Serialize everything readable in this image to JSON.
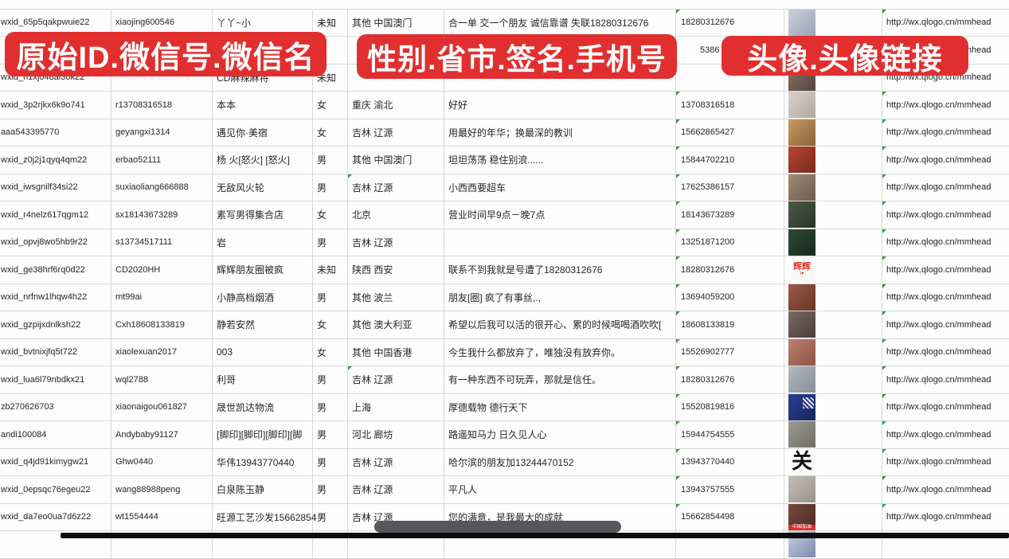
{
  "overlay_banners": [
    {
      "label": "原始ID.微信号.微信名"
    },
    {
      "label": "性别.省市.签名.手机号"
    },
    {
      "label": "头像.头像链接"
    }
  ],
  "colors": {
    "banner_red": "#e12f2f",
    "grid_line": "#d8d8d8",
    "text": "#262626",
    "error_flag_green": "#3f9a3f",
    "scrollbar_thumb": "#54585c",
    "bottom_bar": "#0d0d0d"
  },
  "rows": [
    {
      "original_id": "wxid_65p5qakpwuie22",
      "wechat_id": "xiaojing600546",
      "wechat_name": "丫丫~小",
      "gender": "未知",
      "province": "其他 中国澳门",
      "signature": "合一单 交一个朋友 诚信靠谱 失联18280312676",
      "phone": "18280312676",
      "avatar_url": "http://wx.qlogo.cn/mmhead",
      "avatar": {
        "name": "avatar-girl-photo",
        "colors": [
          "#c7d0dc",
          "#9aa5b5"
        ]
      },
      "marks": {
        "phone": true,
        "url": true
      }
    },
    {
      "original_id": "",
      "wechat_id": "",
      "wechat_name": "",
      "gender": "",
      "province": "",
      "signature": "",
      "phone": "5386",
      "avatar_url": "http://wx.qlogo.cn/mmhead",
      "avatar": {
        "name": "avatar-girl-photo",
        "colors": [
          "#c9c2bb",
          "#9b9490"
        ]
      },
      "marks": {
        "url": true
      }
    },
    {
      "original_id": "wxid_h1xj048al3ok22",
      "wechat_id": "",
      "wechat_name": "CD麻辣麻将",
      "gender": "未知",
      "province": "",
      "signature": "",
      "phone": "",
      "avatar_url": "http://wx.qlogo.cn/mmhead",
      "avatar": {
        "name": "avatar-girl-photo",
        "colors": [
          "#8a7568",
          "#54443e"
        ]
      },
      "marks": {
        "url": true
      }
    },
    {
      "original_id": "wxid_3p2rjkx6k9o741",
      "wechat_id": "r13708316518",
      "wechat_name": "本本",
      "gender": "女",
      "province": "重庆 渝北",
      "signature": "好好",
      "phone": "13708316518",
      "avatar_url": "http://wx.qlogo.cn/mmhead",
      "avatar": {
        "name": "avatar-girl-photo",
        "colors": [
          "#d8d3cc",
          "#b0a79c"
        ]
      },
      "marks": {
        "phone": true,
        "url": true
      }
    },
    {
      "original_id": "aaa543395770",
      "wechat_id": "geyangxi1314",
      "wechat_name": "遇见你·美宿",
      "gender": "女",
      "province": "吉林 辽源",
      "signature": "用最好的年华；换最深的教训",
      "phone": "15662865427",
      "avatar_url": "http://wx.qlogo.cn/mmhead",
      "avatar": {
        "name": "avatar-amber-photo",
        "colors": [
          "#c89a66",
          "#8a6238"
        ]
      },
      "marks": {
        "phone": true,
        "url": true
      }
    },
    {
      "original_id": "wxid_z0j2j1qyq4qm22",
      "wechat_id": "erbao52111",
      "wechat_name": "杨 火[怒火] [怒火]",
      "gender": "男",
      "province": "其他 中国澳门",
      "signature": "坦坦荡荡 稳住别浪......",
      "phone": "15844702210",
      "avatar_url": "http://wx.qlogo.cn/mmhead",
      "avatar": {
        "name": "avatar-red-figures-photo",
        "colors": [
          "#b8452f",
          "#7a2a1e"
        ]
      },
      "marks": {
        "phone": true,
        "url": true
      }
    },
    {
      "original_id": "wxid_iwsgnilf34si22",
      "wechat_id": "suxiaoliang666888",
      "wechat_name": "无敌风火轮",
      "gender": "男",
      "province": "吉林 辽源",
      "signature": "小西西要超车",
      "phone": "17625386157",
      "avatar_url": "http://wx.qlogo.cn/mmhead",
      "avatar": {
        "name": "avatar-man-in-car-photo",
        "colors": [
          "#a08a78",
          "#6e5a4c"
        ]
      },
      "marks": {
        "phone": true,
        "url": true,
        "province": true
      }
    },
    {
      "original_id": "wxid_r4nelz617qgm12",
      "wechat_id": "sx18143673289",
      "wechat_name": "素写男得集合店",
      "gender": "女",
      "province": "北京",
      "signature": "营业时间早9点－晚7点",
      "phone": "18143673289",
      "avatar_url": "http://wx.qlogo.cn/mmhead",
      "avatar": {
        "name": "avatar-storefront-photo",
        "colors": [
          "#4a5a48",
          "#2a3428"
        ]
      },
      "marks": {
        "phone": true,
        "url": true
      }
    },
    {
      "original_id": "wxid_opvj8wo5hb9r22",
      "wechat_id": "s13734517111",
      "wechat_name": "岩",
      "gender": "男",
      "province": "吉林 辽源",
      "signature": "",
      "phone": "13251871200",
      "avatar_url": "http://wx.qlogo.cn/mmhead",
      "avatar": {
        "name": "avatar-dark-sign-photo",
        "colors": [
          "#2f4a3a",
          "#16281e"
        ]
      },
      "marks": {
        "phone": true,
        "url": true
      }
    },
    {
      "original_id": "wxid_ge38hrf6rq0d22",
      "wechat_id": "CD2020HH",
      "wechat_name": "辉辉朋友圈被疯",
      "gender": "未知",
      "province": "陕西 西安",
      "signature": "联系不到我就是号遭了18280312676",
      "phone": "18280312676",
      "avatar_url": "http://wx.qlogo.cn/mmhead",
      "avatar": {
        "name": "avatar-text-huihui",
        "colors": [
          "#ffffff",
          "#f4f4f4"
        ],
        "label": "辉辉",
        "label_color": "#e03a2a",
        "sub": "I♥",
        "sub_color": "#e03a2a"
      },
      "marks": {
        "phone": true,
        "url": true
      }
    },
    {
      "original_id": "wxid_nrfnw1lhqw4h22",
      "wechat_id": "mt99ai",
      "wechat_name": "小静高档烟酒",
      "gender": "男",
      "province": "其他 波兰",
      "signature": "朋友[圈] 疯了有事丝,.,",
      "phone": "13694059200",
      "avatar_url": "http://wx.qlogo.cn/mmhead",
      "avatar": {
        "name": "avatar-woman-sunglasses-photo",
        "colors": [
          "#9a5a44",
          "#6a3427"
        ]
      },
      "marks": {
        "phone": true,
        "url": true
      }
    },
    {
      "original_id": "wxid_gzpijxdnlksh22",
      "wechat_id": "Cxh18608133819",
      "wechat_name": "静若安然",
      "gender": "女",
      "province": "其他 澳大利亚",
      "signature": "希望以后我可以活的很开心、累的时候喝喝酒吹吹[",
      "phone": "18608133819",
      "avatar_url": "http://wx.qlogo.cn/mmhead",
      "avatar": {
        "name": "avatar-girl-portrait-photo",
        "colors": [
          "#7a6a62",
          "#4a3c38"
        ]
      },
      "marks": {
        "phone": true,
        "url": true
      }
    },
    {
      "original_id": "wxid_bvtnixjfq5t722",
      "wechat_id": "xiaolexuan2017",
      "wechat_name": "003",
      "gender": "女",
      "province": "其他 中国香港",
      "signature": "今生我什么都放弃了，唯独没有放弃你。",
      "phone": "15526902777",
      "avatar_url": "http://wx.qlogo.cn/mmhead",
      "avatar": {
        "name": "avatar-girl-portrait-photo",
        "colors": [
          "#c08070",
          "#8a5244"
        ]
      },
      "marks": {
        "phone": true,
        "url": true
      }
    },
    {
      "original_id": "wxid_lua6l79nbdkx21",
      "wechat_id": "wql2788",
      "wechat_name": "利哥",
      "gender": "男",
      "province": "吉林 辽源",
      "signature": "有一种东西不可玩弄，那就是信任。",
      "phone": "18280312676",
      "avatar_url": "http://wx.qlogo.cn/mmhead",
      "avatar": {
        "name": "avatar-man-white-cap-photo",
        "colors": [
          "#b4bac2",
          "#848c96"
        ]
      },
      "marks": {
        "phone": true,
        "url": true,
        "province": true
      }
    },
    {
      "original_id": "zb270626703",
      "wechat_id": "xiaonaigou061827",
      "wechat_name": "晟世凯达物流",
      "gender": "男",
      "province": "上海",
      "signature": "厚德载物 德行天下",
      "phone": "15520819816",
      "avatar_url": "http://wx.qlogo.cn/mmhead",
      "avatar": {
        "name": "avatar-qr-code-blue",
        "colors": [
          "#2b3f96",
          "#16255c"
        ],
        "qr": true
      },
      "marks": {
        "phone": true,
        "url": true
      }
    },
    {
      "original_id": "andi100084",
      "wechat_id": "Andybaby91127",
      "wechat_name": "[脚印][脚印][脚印][脚",
      "gender": "男",
      "province": "河北 廊坊",
      "signature": "路遥知马力 日久见人心",
      "phone": "15944754555",
      "avatar_url": "http://wx.qlogo.cn/mmhead",
      "avatar": {
        "name": "avatar-building-photo",
        "colors": [
          "#9a9a92",
          "#6e6e66"
        ]
      },
      "marks": {
        "phone": true,
        "url": true
      }
    },
    {
      "original_id": "wxid_q4jd91kimygw21",
      "wechat_id": "Ghw0440",
      "wechat_name": "华伟13943770440",
      "gender": "男",
      "province": "吉林 辽源",
      "signature": "哈尔滨的朋友加13244470152",
      "phone": "13943770440",
      "avatar_url": "http://wx.qlogo.cn/mmhead",
      "avatar": {
        "name": "avatar-calligraphy-guan",
        "colors": [
          "#ffffff",
          "#f6f6f6"
        ],
        "label": "关",
        "label_color": "#111111",
        "big": true
      },
      "marks": {
        "phone": true,
        "url": true
      }
    },
    {
      "original_id": "wxid_0epsqc76egeu22",
      "wechat_id": "wang88988peng",
      "wechat_name": "白泉陈玉静",
      "gender": "男",
      "province": "吉林 辽源",
      "signature": "平凡人",
      "phone": "13943757555",
      "avatar_url": "http://wx.qlogo.cn/mmhead",
      "avatar": {
        "name": "avatar-person-photo",
        "colors": [
          "#c2beb6",
          "#98948c"
        ]
      },
      "marks": {
        "phone": true,
        "url": true
      }
    },
    {
      "original_id": "wxid_da7eo0ua7d6z22",
      "wechat_id": "wt1554444",
      "wechat_name": "旺源工艺沙发15662854",
      "gender": "男",
      "province": "吉林 辽源",
      "signature": "您的满意，是我最大的成就",
      "phone": "15662854498",
      "avatar_url": "http://wx.qlogo.cn/mmhead",
      "avatar": {
        "name": "avatar-china-jiayou-photo",
        "colors": [
          "#7a4a3c",
          "#4a2a22"
        ],
        "sub": "中国加油",
        "sub_color": "#ffffff",
        "sub_bg": "#d23327",
        "strip": true
      },
      "marks": {
        "phone": true,
        "url": true
      }
    },
    {
      "original_id": "",
      "wechat_id": "",
      "wechat_name": "",
      "gender": "",
      "province": "",
      "signature": "",
      "phone": "",
      "avatar_url": "",
      "avatar": {
        "name": "avatar-person-photo",
        "colors": [
          "#c8d0dc",
          "#7a8ab0"
        ]
      },
      "marks": {}
    }
  ]
}
